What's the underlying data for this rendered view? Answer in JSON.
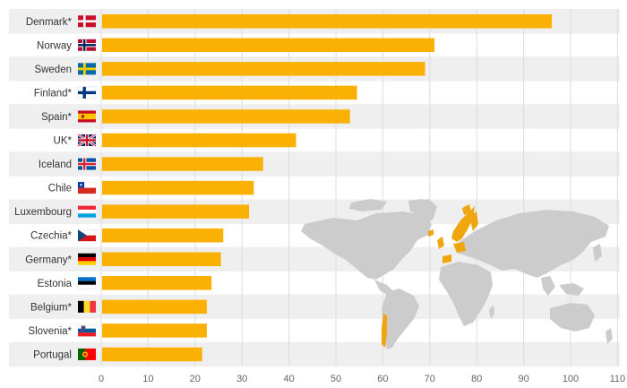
{
  "chart_data": {
    "type": "bar",
    "orientation": "horizontal",
    "title": "",
    "xlabel": "",
    "ylabel": "",
    "xlim": [
      0,
      110
    ],
    "x_ticks": [
      0,
      10,
      20,
      30,
      40,
      50,
      60,
      70,
      80,
      90,
      100,
      110
    ],
    "grid": true,
    "legend": "none",
    "bar_color": "#fbb103",
    "band_color": "#efefef",
    "map_color": "#cccccc",
    "map_highlight_color": "#f0a70f",
    "categories": [
      {
        "label": "Denmark*",
        "value": 96,
        "flag": "flag-denmark"
      },
      {
        "label": "Norway",
        "value": 71,
        "flag": "flag-norway"
      },
      {
        "label": "Sweden",
        "value": 69,
        "flag": "flag-sweden"
      },
      {
        "label": "Finland*",
        "value": 54.5,
        "flag": "flag-finland"
      },
      {
        "label": "Spain*",
        "value": 53,
        "flag": "flag-spain"
      },
      {
        "label": "UK*",
        "value": 41.5,
        "flag": "flag-uk"
      },
      {
        "label": "Iceland",
        "value": 34.5,
        "flag": "flag-iceland"
      },
      {
        "label": "Chile",
        "value": 32.5,
        "flag": "flag-chile"
      },
      {
        "label": "Luxembourg",
        "value": 31.5,
        "flag": "flag-luxembourg"
      },
      {
        "label": "Czechia*",
        "value": 26,
        "flag": "flag-czechia"
      },
      {
        "label": "Germany*",
        "value": 25.5,
        "flag": "flag-germany"
      },
      {
        "label": "Estonia",
        "value": 23.5,
        "flag": "flag-estonia"
      },
      {
        "label": "Belgium*",
        "value": 22.5,
        "flag": "flag-belgium"
      },
      {
        "label": "Slovenia*",
        "value": 22.5,
        "flag": "flag-slovenia"
      },
      {
        "label": "Portugal",
        "value": 21.5,
        "flag": "flag-portugal"
      }
    ]
  }
}
